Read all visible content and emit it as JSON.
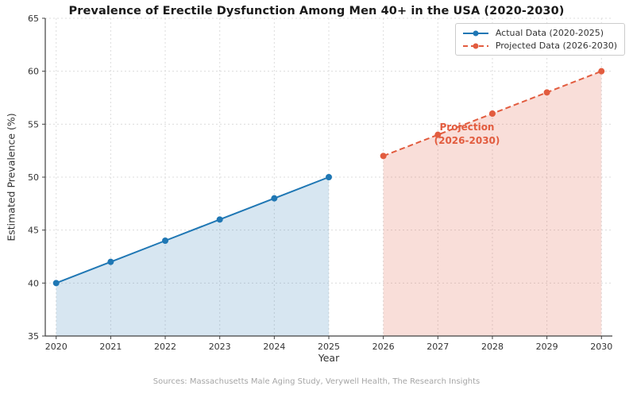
{
  "chart_data": {
    "type": "line",
    "title": "Prevalence of Erectile Dysfunction Among Men 40+ in the USA (2020-2030)",
    "xlabel": "Year",
    "ylabel": "Estimated Prevalence (%)",
    "xlim": [
      2019.8,
      2030.2
    ],
    "ylim": [
      35,
      65
    ],
    "xticks": [
      2020,
      2021,
      2022,
      2023,
      2024,
      2025,
      2026,
      2027,
      2028,
      2029,
      2030
    ],
    "yticks": [
      35,
      40,
      45,
      50,
      55,
      60,
      65
    ],
    "grid": true,
    "legend_position": "upper right",
    "colors": {
      "grid": "#dcdcdc",
      "axis": "#404040",
      "actual": "#1f77b4",
      "actual_fill": "rgba(31,119,180,0.18)",
      "projected": "#e25c3f",
      "projected_fill": "rgba(226,92,63,0.2)"
    },
    "series": [
      {
        "name": "Actual Data (2020-2025)",
        "x": [
          2020,
          2021,
          2022,
          2023,
          2024,
          2025
        ],
        "values": [
          40,
          42,
          44,
          46,
          48,
          50
        ],
        "color": "#1f77b4",
        "fill_color": "rgba(31,119,180,0.18)",
        "style": "solid",
        "marker": "circle",
        "fill": true
      },
      {
        "name": "Projected Data (2026-2030)",
        "x": [
          2026,
          2027,
          2028,
          2029,
          2030
        ],
        "values": [
          52,
          54,
          56,
          58,
          60
        ],
        "color": "#e25c3f",
        "fill_color": "rgba(226,92,63,0.2)",
        "style": "dashed",
        "marker": "circle",
        "fill": true
      }
    ],
    "annotation": {
      "lines": [
        "Projection",
        "(2026-2030)"
      ],
      "color": "#e25c3f"
    },
    "footer": "Sources: Massachusetts Male Aging Study, Verywell Health, The Research Insights"
  }
}
